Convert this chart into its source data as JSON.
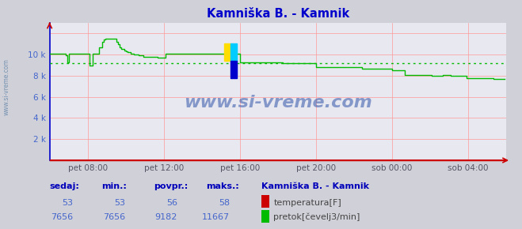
{
  "title": "Kamniška B. - Kamnik",
  "title_color": "#0000cc",
  "bg_color": "#d0d0d8",
  "plot_bg_color": "#e8e8f0",
  "grid_color": "#ff9999",
  "watermark": "www.si-vreme.com",
  "watermark_color": "#3355aa",
  "watermark_alpha": 0.55,
  "side_text": "www.si-vreme.com",
  "side_text_color": "#6688aa",
  "avg_line_value": 9182,
  "avg_line_color": "#00bb00",
  "temp_color": "#cc0000",
  "flow_color": "#00bb00",
  "xlim": [
    0,
    288
  ],
  "ylim": [
    0,
    13000
  ],
  "yticks": [
    0,
    2000,
    4000,
    6000,
    8000,
    10000,
    12000
  ],
  "ytick_labels": [
    "",
    "2 k",
    "4 k",
    "6 k",
    "8 k",
    "10 k",
    ""
  ],
  "xtick_display": [
    24,
    72,
    120,
    168,
    216,
    264
  ],
  "xtick_labels": [
    "pet 08:00",
    "pet 12:00",
    "pet 16:00",
    "pet 20:00",
    "sob 00:00",
    "sob 04:00"
  ],
  "sedaj_temp": 53,
  "min_temp": 53,
  "povpr_temp": 56,
  "maks_temp": 58,
  "sedaj_flow": 7656,
  "min_flow": 7656,
  "povpr_flow": 9182,
  "maks_flow": 11667,
  "legend_title": "Kamniška B. - Kamnik",
  "table_header_color": "#0000bb",
  "table_value_color": "#4466cc",
  "legend_title_color": "#0000bb",
  "legend_text_color": "#444444",
  "flow_data_y": [
    10100,
    10100,
    10100,
    10100,
    10100,
    10100,
    10100,
    10100,
    10100,
    10100,
    9900,
    9300,
    10100,
    10100,
    10100,
    10100,
    10100,
    10100,
    10100,
    10100,
    10100,
    10100,
    10100,
    10100,
    10100,
    9000,
    9000,
    10100,
    10100,
    10100,
    10100,
    10700,
    10700,
    11200,
    11400,
    11500,
    11500,
    11500,
    11500,
    11500,
    11500,
    11500,
    11200,
    11000,
    10700,
    10500,
    10500,
    10400,
    10300,
    10200,
    10200,
    10100,
    10100,
    10000,
    10000,
    10000,
    9900,
    9900,
    9900,
    9800,
    9800,
    9800,
    9800,
    9800,
    9800,
    9800,
    9800,
    9800,
    9700,
    9700,
    9700,
    9700,
    9700,
    10100,
    10100,
    10100,
    10100,
    10100,
    10100,
    10100,
    10100,
    10100,
    10100,
    10100,
    10100,
    10100,
    10100,
    10100,
    10100,
    10100,
    10100,
    10100,
    10100,
    10100,
    10100,
    10100,
    10100,
    10100,
    10100,
    10100,
    10100,
    10100,
    10100,
    10100,
    10100,
    10100,
    10100,
    10100,
    10100,
    10100,
    10100,
    10100,
    10100,
    10100,
    10100,
    10100,
    10100,
    10100,
    10100,
    10100,
    9300,
    9300,
    9300,
    9300,
    9300,
    9300,
    9300,
    9300,
    9300,
    9300,
    9300,
    9300,
    9300,
    9300,
    9300,
    9300,
    9300,
    9300,
    9300,
    9300,
    9300,
    9300,
    9300,
    9300,
    9300,
    9300,
    9300,
    9200,
    9200,
    9200,
    9200,
    9200,
    9200,
    9200,
    9200,
    9200,
    9200,
    9200,
    9200,
    9200,
    9200,
    9200,
    9200,
    9200,
    9200,
    9200,
    9200,
    9200,
    8800,
    8800,
    8800,
    8800,
    8800,
    8800,
    8800,
    8800,
    8800,
    8800,
    8800,
    8800,
    8800,
    8800,
    8800,
    8800,
    8800,
    8800,
    8800,
    8800,
    8800,
    8800,
    8800,
    8800,
    8800,
    8800,
    8800,
    8800,
    8800,
    8700,
    8700,
    8700,
    8700,
    8700,
    8700,
    8700,
    8700,
    8700,
    8700,
    8700,
    8700,
    8700,
    8700,
    8700,
    8700,
    8700,
    8700,
    8700,
    8500,
    8500,
    8500,
    8500,
    8500,
    8500,
    8500,
    8500,
    8100,
    8100,
    8100,
    8100,
    8100,
    8100,
    8100,
    8100,
    8100,
    8100,
    8100,
    8100,
    8100,
    8100,
    8100,
    8100,
    8100,
    8000,
    8000,
    8000,
    8000,
    8000,
    8000,
    8000,
    8100,
    8100,
    8100,
    8100,
    8100,
    8000,
    8000,
    8000,
    8000,
    8000,
    8000,
    8000,
    8000,
    8000,
    8000,
    7800,
    7800,
    7800,
    7800,
    7800,
    7800,
    7800,
    7800,
    7800,
    7800,
    7800,
    7800,
    7800,
    7800,
    7800,
    7800,
    7800,
    7700,
    7700,
    7700,
    7700,
    7700,
    7700,
    7700,
    7700
  ]
}
